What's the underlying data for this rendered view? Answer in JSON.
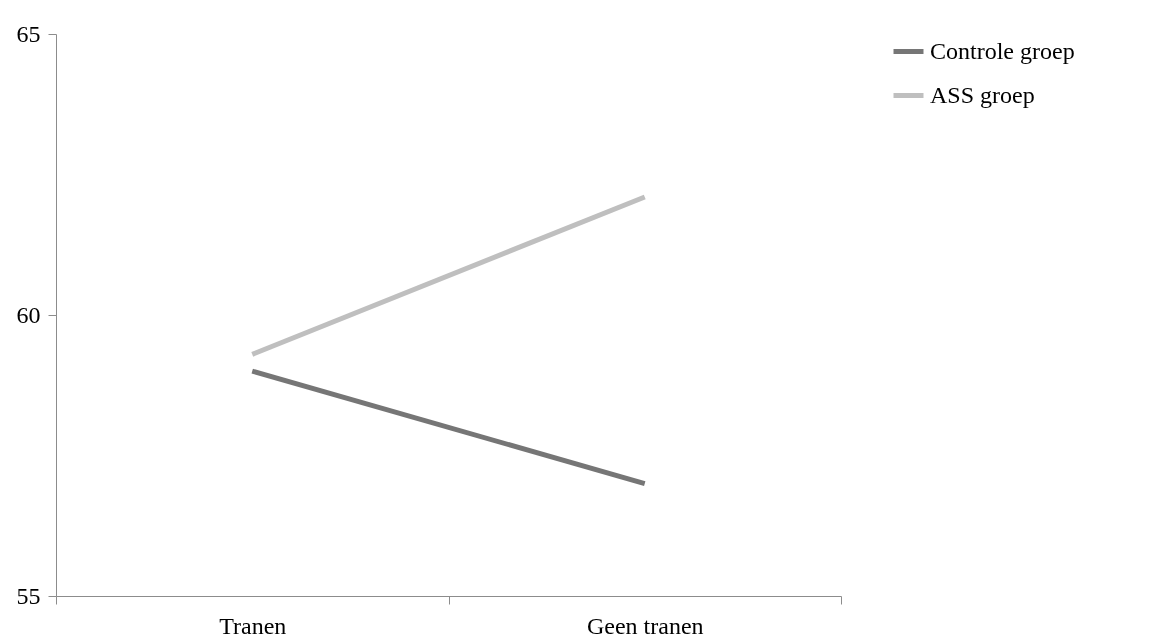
{
  "chart_data": {
    "type": "line",
    "categories": [
      "Tranen",
      "Geen tranen"
    ],
    "series": [
      {
        "name": "Controle groep",
        "color": "#767676",
        "values": [
          59.0,
          57.0
        ]
      },
      {
        "name": "ASS groep",
        "color": "#bfbfbf",
        "values": [
          59.3,
          62.1
        ]
      }
    ],
    "ylim": [
      55,
      65
    ],
    "yticks": [
      55,
      60,
      65
    ],
    "grid": false,
    "legend": "right",
    "marker": "none",
    "line_style": "solid"
  }
}
